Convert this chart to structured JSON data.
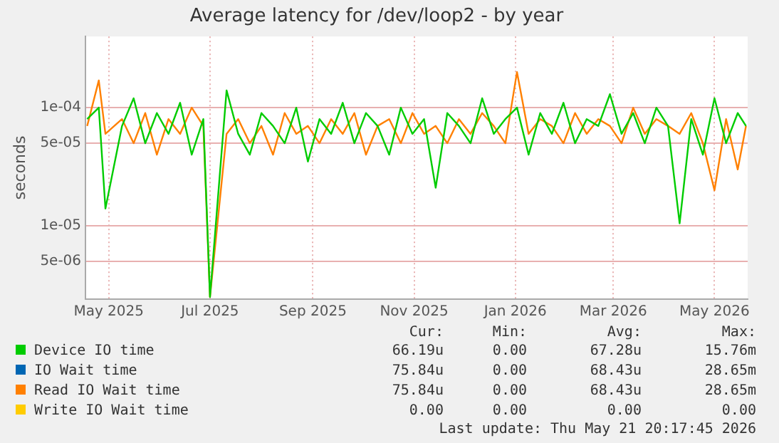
{
  "chart_data": {
    "type": "line",
    "title": "Average latency for /dev/loop2 - by year",
    "ylabel": "seconds",
    "log": "y",
    "grid": true,
    "legend": "bottom",
    "marker": "none",
    "line_style": "solid",
    "x": [
      "2025-04-18",
      "2025-04-25",
      "2025-04-29",
      "2025-05-09",
      "2025-05-16",
      "2025-05-23",
      "2025-05-30",
      "2025-06-06",
      "2025-06-13",
      "2025-06-20",
      "2025-06-27",
      "2025-07-01",
      "2025-07-11",
      "2025-07-18",
      "2025-07-25",
      "2025-08-01",
      "2025-08-08",
      "2025-08-15",
      "2025-08-22",
      "2025-08-29",
      "2025-09-05",
      "2025-09-12",
      "2025-09-19",
      "2025-09-26",
      "2025-10-03",
      "2025-10-10",
      "2025-10-17",
      "2025-10-24",
      "2025-10-31",
      "2025-11-07",
      "2025-11-14",
      "2025-11-21",
      "2025-11-28",
      "2025-12-05",
      "2025-12-12",
      "2025-12-19",
      "2025-12-26",
      "2026-01-02",
      "2026-01-09",
      "2026-01-16",
      "2026-01-23",
      "2026-01-30",
      "2026-02-06",
      "2026-02-13",
      "2026-02-20",
      "2026-02-27",
      "2026-03-06",
      "2026-03-13",
      "2026-03-20",
      "2026-03-27",
      "2026-04-03",
      "2026-04-10",
      "2026-04-17",
      "2026-04-24",
      "2026-05-01",
      "2026-05-08",
      "2026-05-15",
      "2026-05-20"
    ],
    "series": [
      {
        "name": "Device IO time",
        "color": "#00cc00",
        "values": [
          8e-05,
          0.0001,
          1.4e-05,
          7e-05,
          0.00012,
          5e-05,
          9e-05,
          6e-05,
          0.00011,
          4e-05,
          8e-05,
          2.5e-06,
          0.00014,
          6e-05,
          4e-05,
          9e-05,
          7e-05,
          5e-05,
          0.0001,
          3.5e-05,
          8e-05,
          6e-05,
          0.00011,
          5e-05,
          9e-05,
          7e-05,
          4e-05,
          0.0001,
          6e-05,
          8e-05,
          2.1e-05,
          9e-05,
          7e-05,
          5e-05,
          0.00012,
          6e-05,
          8e-05,
          0.0001,
          4e-05,
          9e-05,
          6e-05,
          0.00011,
          5e-05,
          8e-05,
          7e-05,
          0.00013,
          6e-05,
          9e-05,
          5e-05,
          0.0001,
          7e-05,
          1.05e-05,
          8e-05,
          4e-05,
          0.00012,
          5e-05,
          9e-05,
          7e-05
        ]
      },
      {
        "name": "IO Wait time",
        "color": "#0066b3",
        "values": [
          null,
          null,
          null,
          null,
          null,
          null,
          null,
          null,
          null,
          null,
          null,
          null,
          null,
          null,
          null,
          null,
          null,
          null,
          null,
          null,
          null,
          null,
          null,
          null,
          null,
          null,
          null,
          null,
          null,
          null,
          null,
          null,
          null,
          null,
          null,
          null,
          null,
          null,
          null,
          null,
          null,
          null,
          null,
          null,
          null,
          null,
          null,
          null,
          null,
          null,
          null,
          null,
          null,
          null,
          null,
          null,
          null,
          null
        ]
      },
      {
        "name": "Read IO Wait time",
        "color": "#ff8000",
        "values": [
          7e-05,
          0.00017,
          6e-05,
          8e-05,
          5e-05,
          9e-05,
          4e-05,
          8e-05,
          6e-05,
          0.0001,
          7e-05,
          2.5e-06,
          6e-05,
          8e-05,
          5e-05,
          7e-05,
          4e-05,
          9e-05,
          6e-05,
          7e-05,
          5e-05,
          8e-05,
          6e-05,
          9e-05,
          4e-05,
          7e-05,
          8e-05,
          5e-05,
          9e-05,
          6e-05,
          7e-05,
          5e-05,
          8e-05,
          6e-05,
          9e-05,
          7e-05,
          5e-05,
          0.0002,
          6e-05,
          8e-05,
          7e-05,
          5e-05,
          9e-05,
          6e-05,
          8e-05,
          7e-05,
          5e-05,
          0.0001,
          6e-05,
          8e-05,
          7e-05,
          6e-05,
          9e-05,
          5e-05,
          2e-05,
          8e-05,
          3e-05,
          7e-05
        ]
      },
      {
        "name": "Write IO Wait time",
        "color": "#ffcc00",
        "values": [
          null,
          null,
          null,
          null,
          null,
          null,
          null,
          null,
          null,
          null,
          null,
          null,
          null,
          null,
          null,
          null,
          null,
          null,
          null,
          null,
          null,
          null,
          null,
          null,
          null,
          null,
          null,
          null,
          null,
          null,
          null,
          null,
          null,
          null,
          null,
          null,
          null,
          null,
          null,
          null,
          null,
          null,
          null,
          null,
          null,
          null,
          null,
          null,
          null,
          null,
          null,
          null,
          null,
          null,
          null,
          null,
          null,
          null
        ]
      }
    ],
    "xlim": [
      "2025-04-17",
      "2026-05-21"
    ],
    "xticks": [
      {
        "value": "2025-05-01",
        "label": "May 2025"
      },
      {
        "value": "2025-07-01",
        "label": "Jul 2025"
      },
      {
        "value": "2025-09-01",
        "label": "Sep 2025"
      },
      {
        "value": "2025-11-01",
        "label": "Nov 2025"
      },
      {
        "value": "2026-01-01",
        "label": "Jan 2026"
      },
      {
        "value": "2026-03-01",
        "label": "Mar 2026"
      },
      {
        "value": "2026-05-01",
        "label": "May 2026"
      }
    ],
    "ylim": [
      2.4e-06,
      0.0004
    ],
    "yticks": [
      {
        "value": 5e-06,
        "label": "5e-06"
      },
      {
        "value": 1e-05,
        "label": "1e-05"
      },
      {
        "value": 5e-05,
        "label": "5e-05"
      },
      {
        "value": 0.0001,
        "label": "1e-04"
      }
    ],
    "annotations": [
      "Cur:",
      "Min:",
      "Avg:",
      "Max:",
      "66.19u",
      "0.00",
      "67.28u",
      "15.76m",
      "75.84u",
      "0.00",
      "68.43u",
      "28.65m",
      "75.84u",
      "0.00",
      "68.43u",
      "28.65m",
      "0.00",
      "0.00",
      "0.00",
      "0.00",
      "Last update: Thu May 21 20:17:45 2026"
    ]
  }
}
